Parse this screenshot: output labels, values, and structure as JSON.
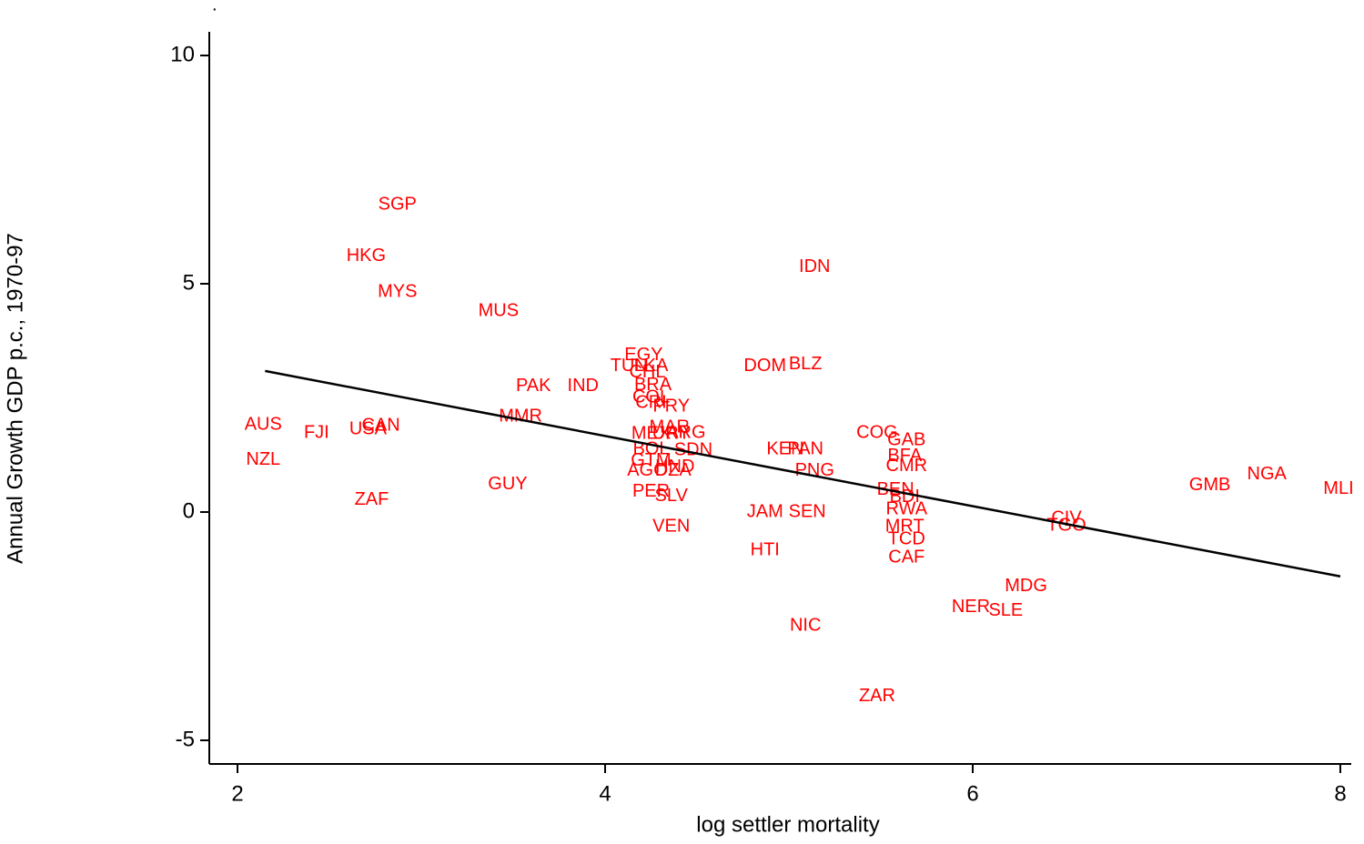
{
  "chart_data": {
    "type": "scatter",
    "title": ".",
    "x_label": "log settler mortality",
    "y_label": "Annual Growth GDP p.c., 1970-97",
    "xlim": [
      1.85,
      8.07
    ],
    "ylim": [
      -5.5,
      10.5
    ],
    "xticks": [
      2,
      4,
      6,
      8
    ],
    "yticks": [
      -5,
      0,
      5,
      10
    ],
    "color": "#ff0000",
    "fit_color": "#000000",
    "series": [
      {
        "name": "countries",
        "labels": [
          "SGP",
          "HKG",
          "MYS",
          "MUS",
          "IDN",
          "EGY",
          "TUN",
          "LKA",
          "CHL",
          "DOM",
          "BLZ",
          "PAK",
          "IND",
          "BRA",
          "COL",
          "CRI",
          "PRY",
          "MMR",
          "AUS",
          "FJI",
          "USA",
          "CAN",
          "MAR",
          "MEX",
          "URY",
          "ARG",
          "COG",
          "GAB",
          "KEN",
          "PAN",
          "BOL",
          "SDN",
          "BFA",
          "NZL",
          "GTM",
          "HND",
          "AGO",
          "DZA",
          "CMR",
          "PNG",
          "GUY",
          "GMB",
          "NGA",
          "MLI",
          "BEN",
          "BDI",
          "PER",
          "SLV",
          "ZAF",
          "RWA",
          "JAM",
          "SEN",
          "CIV",
          "TGO",
          "VEN",
          "MRT",
          "TCD",
          "HTI",
          "CAF",
          "MDG",
          "NER",
          "SLE",
          "NIC",
          "ZAR"
        ],
        "x": [
          2.87,
          2.7,
          2.87,
          3.42,
          5.14,
          4.21,
          4.13,
          4.25,
          4.23,
          4.87,
          5.09,
          3.61,
          3.88,
          4.26,
          4.25,
          4.25,
          4.36,
          3.54,
          2.14,
          2.43,
          2.71,
          2.78,
          4.35,
          4.25,
          4.36,
          4.44,
          5.48,
          5.64,
          4.98,
          5.09,
          4.25,
          4.48,
          5.63,
          2.14,
          4.25,
          4.38,
          4.23,
          4.37,
          5.64,
          5.14,
          3.47,
          7.29,
          7.6,
          7.99,
          5.58,
          5.63,
          4.25,
          4.36,
          2.73,
          5.64,
          4.87,
          5.1,
          6.51,
          6.51,
          4.36,
          5.63,
          5.64,
          4.87,
          5.64,
          6.29,
          5.99,
          6.18,
          5.09,
          5.48
        ],
        "y": [
          6.73,
          5.6,
          4.82,
          4.4,
          5.36,
          3.43,
          3.19,
          3.19,
          3.05,
          3.19,
          3.23,
          2.75,
          2.75,
          2.77,
          2.51,
          2.39,
          2.31,
          2.09,
          1.91,
          1.73,
          1.81,
          1.89,
          1.85,
          1.71,
          1.71,
          1.73,
          1.73,
          1.57,
          1.37,
          1.37,
          1.37,
          1.35,
          1.22,
          1.14,
          1.12,
          0.98,
          0.9,
          0.9,
          1.0,
          0.9,
          0.6,
          0.58,
          0.82,
          0.5,
          0.48,
          0.32,
          0.44,
          0.34,
          0.26,
          0.06,
          0.0,
          0.0,
          -0.14,
          -0.3,
          -0.32,
          -0.32,
          -0.6,
          -0.84,
          -1.0,
          -1.63,
          -2.09,
          -2.17,
          -2.49,
          -4.04
        ]
      }
    ],
    "fit": {
      "x": [
        2.15,
        8.0
      ],
      "y": [
        3.09,
        -1.41
      ]
    }
  }
}
